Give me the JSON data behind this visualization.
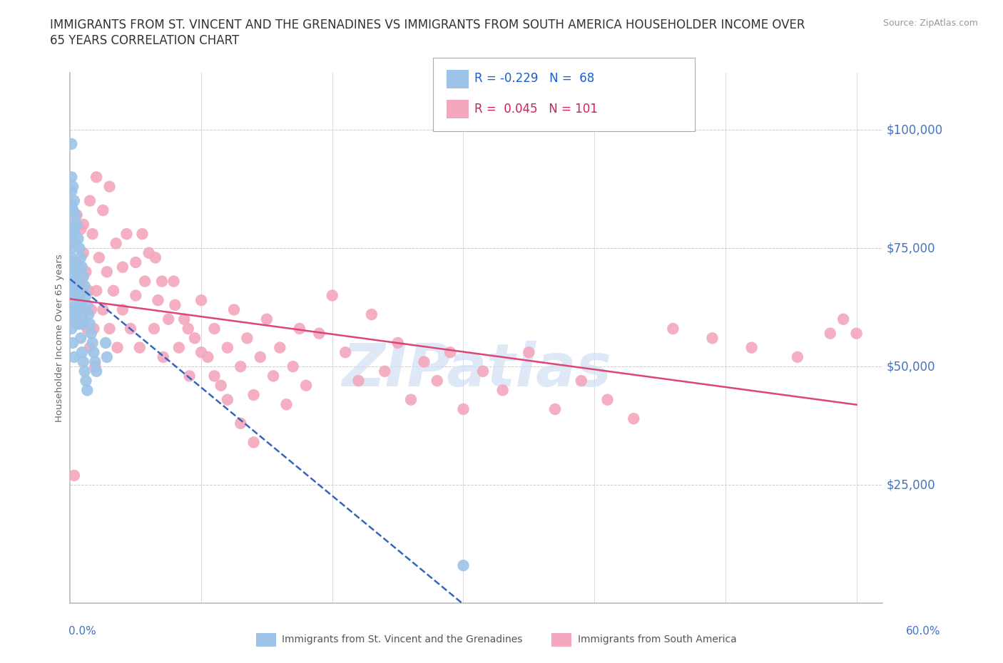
{
  "title_line1": "IMMIGRANTS FROM ST. VINCENT AND THE GRENADINES VS IMMIGRANTS FROM SOUTH AMERICA HOUSEHOLDER INCOME OVER",
  "title_line2": "65 YEARS CORRELATION CHART",
  "source": "Source: ZipAtlas.com",
  "ylabel": "Householder Income Over 65 years",
  "xlim": [
    0.0,
    0.62
  ],
  "ylim": [
    0,
    112000
  ],
  "ytick_vals": [
    0,
    25000,
    50000,
    75000,
    100000
  ],
  "ytick_labels": [
    "",
    "$25,000",
    "$50,000",
    "$75,000",
    "$100,000"
  ],
  "xtick_left": "0.0%",
  "xtick_right": "60.0%",
  "series1_name": "Immigrants from St. Vincent and the Grenadines",
  "series1_color": "#9dc4e8",
  "series1_R": -0.229,
  "series1_N": 68,
  "series2_name": "Immigrants from South America",
  "series2_color": "#f4a7bc",
  "series2_R": 0.045,
  "series2_N": 101,
  "legend_color1": "#1a5fcc",
  "legend_color2": "#cc2255",
  "reg_color1": "#3366bb",
  "reg_color2": "#dd4477",
  "reg_linestyle1": "--",
  "reg_linestyle2": "-",
  "grid_color": "#cccccc",
  "watermark": "ZIPatlas",
  "watermark_color": "#d0dff5",
  "bg_color": "#ffffff",
  "axis_color": "#bbbbbb",
  "text_color": "#333333",
  "yaxis_label_color": "#4472c4",
  "xaxis_label_color": "#4472c4",
  "series1_x": [
    0.001,
    0.001,
    0.001,
    0.001,
    0.002,
    0.002,
    0.002,
    0.002,
    0.003,
    0.003,
    0.003,
    0.003,
    0.004,
    0.004,
    0.004,
    0.005,
    0.005,
    0.005,
    0.006,
    0.006,
    0.007,
    0.007,
    0.008,
    0.008,
    0.009,
    0.009,
    0.01,
    0.01,
    0.011,
    0.012,
    0.013,
    0.014,
    0.015,
    0.016,
    0.017,
    0.018,
    0.019,
    0.02,
    0.001,
    0.001,
    0.002,
    0.002,
    0.003,
    0.003,
    0.004,
    0.005,
    0.006,
    0.007,
    0.008,
    0.009,
    0.01,
    0.011,
    0.012,
    0.013,
    0.001,
    0.002,
    0.003,
    0.004,
    0.005,
    0.001,
    0.002,
    0.003,
    0.001,
    0.002,
    0.001,
    0.027,
    0.028,
    0.3
  ],
  "series1_y": [
    97000,
    84000,
    78000,
    70000,
    88000,
    80000,
    72000,
    65000,
    85000,
    76000,
    68000,
    60000,
    82000,
    72000,
    62000,
    80000,
    70000,
    60000,
    77000,
    67000,
    75000,
    65000,
    73000,
    63000,
    71000,
    61000,
    69000,
    59000,
    67000,
    65000,
    63000,
    61000,
    59000,
    57000,
    55000,
    53000,
    51000,
    49000,
    90000,
    58000,
    83000,
    55000,
    78000,
    52000,
    68000,
    65000,
    62000,
    59000,
    56000,
    53000,
    51000,
    49000,
    47000,
    45000,
    75000,
    71000,
    67000,
    63000,
    59000,
    87000,
    83000,
    79000,
    66000,
    62000,
    73000,
    55000,
    52000,
    8000
  ],
  "series2_x": [
    0.004,
    0.005,
    0.006,
    0.007,
    0.008,
    0.009,
    0.01,
    0.011,
    0.012,
    0.013,
    0.014,
    0.015,
    0.016,
    0.017,
    0.018,
    0.019,
    0.02,
    0.022,
    0.025,
    0.028,
    0.03,
    0.033,
    0.036,
    0.04,
    0.043,
    0.046,
    0.05,
    0.053,
    0.057,
    0.06,
    0.064,
    0.067,
    0.071,
    0.075,
    0.079,
    0.083,
    0.087,
    0.091,
    0.095,
    0.1,
    0.105,
    0.11,
    0.115,
    0.12,
    0.125,
    0.13,
    0.135,
    0.14,
    0.145,
    0.15,
    0.155,
    0.16,
    0.165,
    0.17,
    0.175,
    0.18,
    0.19,
    0.2,
    0.21,
    0.22,
    0.23,
    0.24,
    0.25,
    0.26,
    0.27,
    0.28,
    0.29,
    0.3,
    0.315,
    0.33,
    0.35,
    0.37,
    0.39,
    0.41,
    0.43,
    0.46,
    0.49,
    0.52,
    0.555,
    0.58,
    0.01,
    0.015,
    0.02,
    0.025,
    0.03,
    0.035,
    0.04,
    0.05,
    0.055,
    0.065,
    0.07,
    0.08,
    0.09,
    0.1,
    0.11,
    0.12,
    0.13,
    0.14,
    0.59,
    0.6,
    0.003
  ],
  "series2_y": [
    76000,
    82000,
    71000,
    65000,
    79000,
    68000,
    74000,
    62000,
    70000,
    58000,
    66000,
    54000,
    62000,
    78000,
    58000,
    50000,
    66000,
    73000,
    62000,
    70000,
    58000,
    66000,
    54000,
    62000,
    78000,
    58000,
    72000,
    54000,
    68000,
    74000,
    58000,
    64000,
    52000,
    60000,
    68000,
    54000,
    60000,
    48000,
    56000,
    64000,
    52000,
    58000,
    46000,
    54000,
    62000,
    50000,
    56000,
    44000,
    52000,
    60000,
    48000,
    54000,
    42000,
    50000,
    58000,
    46000,
    57000,
    65000,
    53000,
    47000,
    61000,
    49000,
    55000,
    43000,
    51000,
    47000,
    53000,
    41000,
    49000,
    45000,
    53000,
    41000,
    47000,
    43000,
    39000,
    58000,
    56000,
    54000,
    52000,
    57000,
    80000,
    85000,
    90000,
    83000,
    88000,
    76000,
    71000,
    65000,
    78000,
    73000,
    68000,
    63000,
    58000,
    53000,
    48000,
    43000,
    38000,
    34000,
    60000,
    57000,
    27000
  ]
}
